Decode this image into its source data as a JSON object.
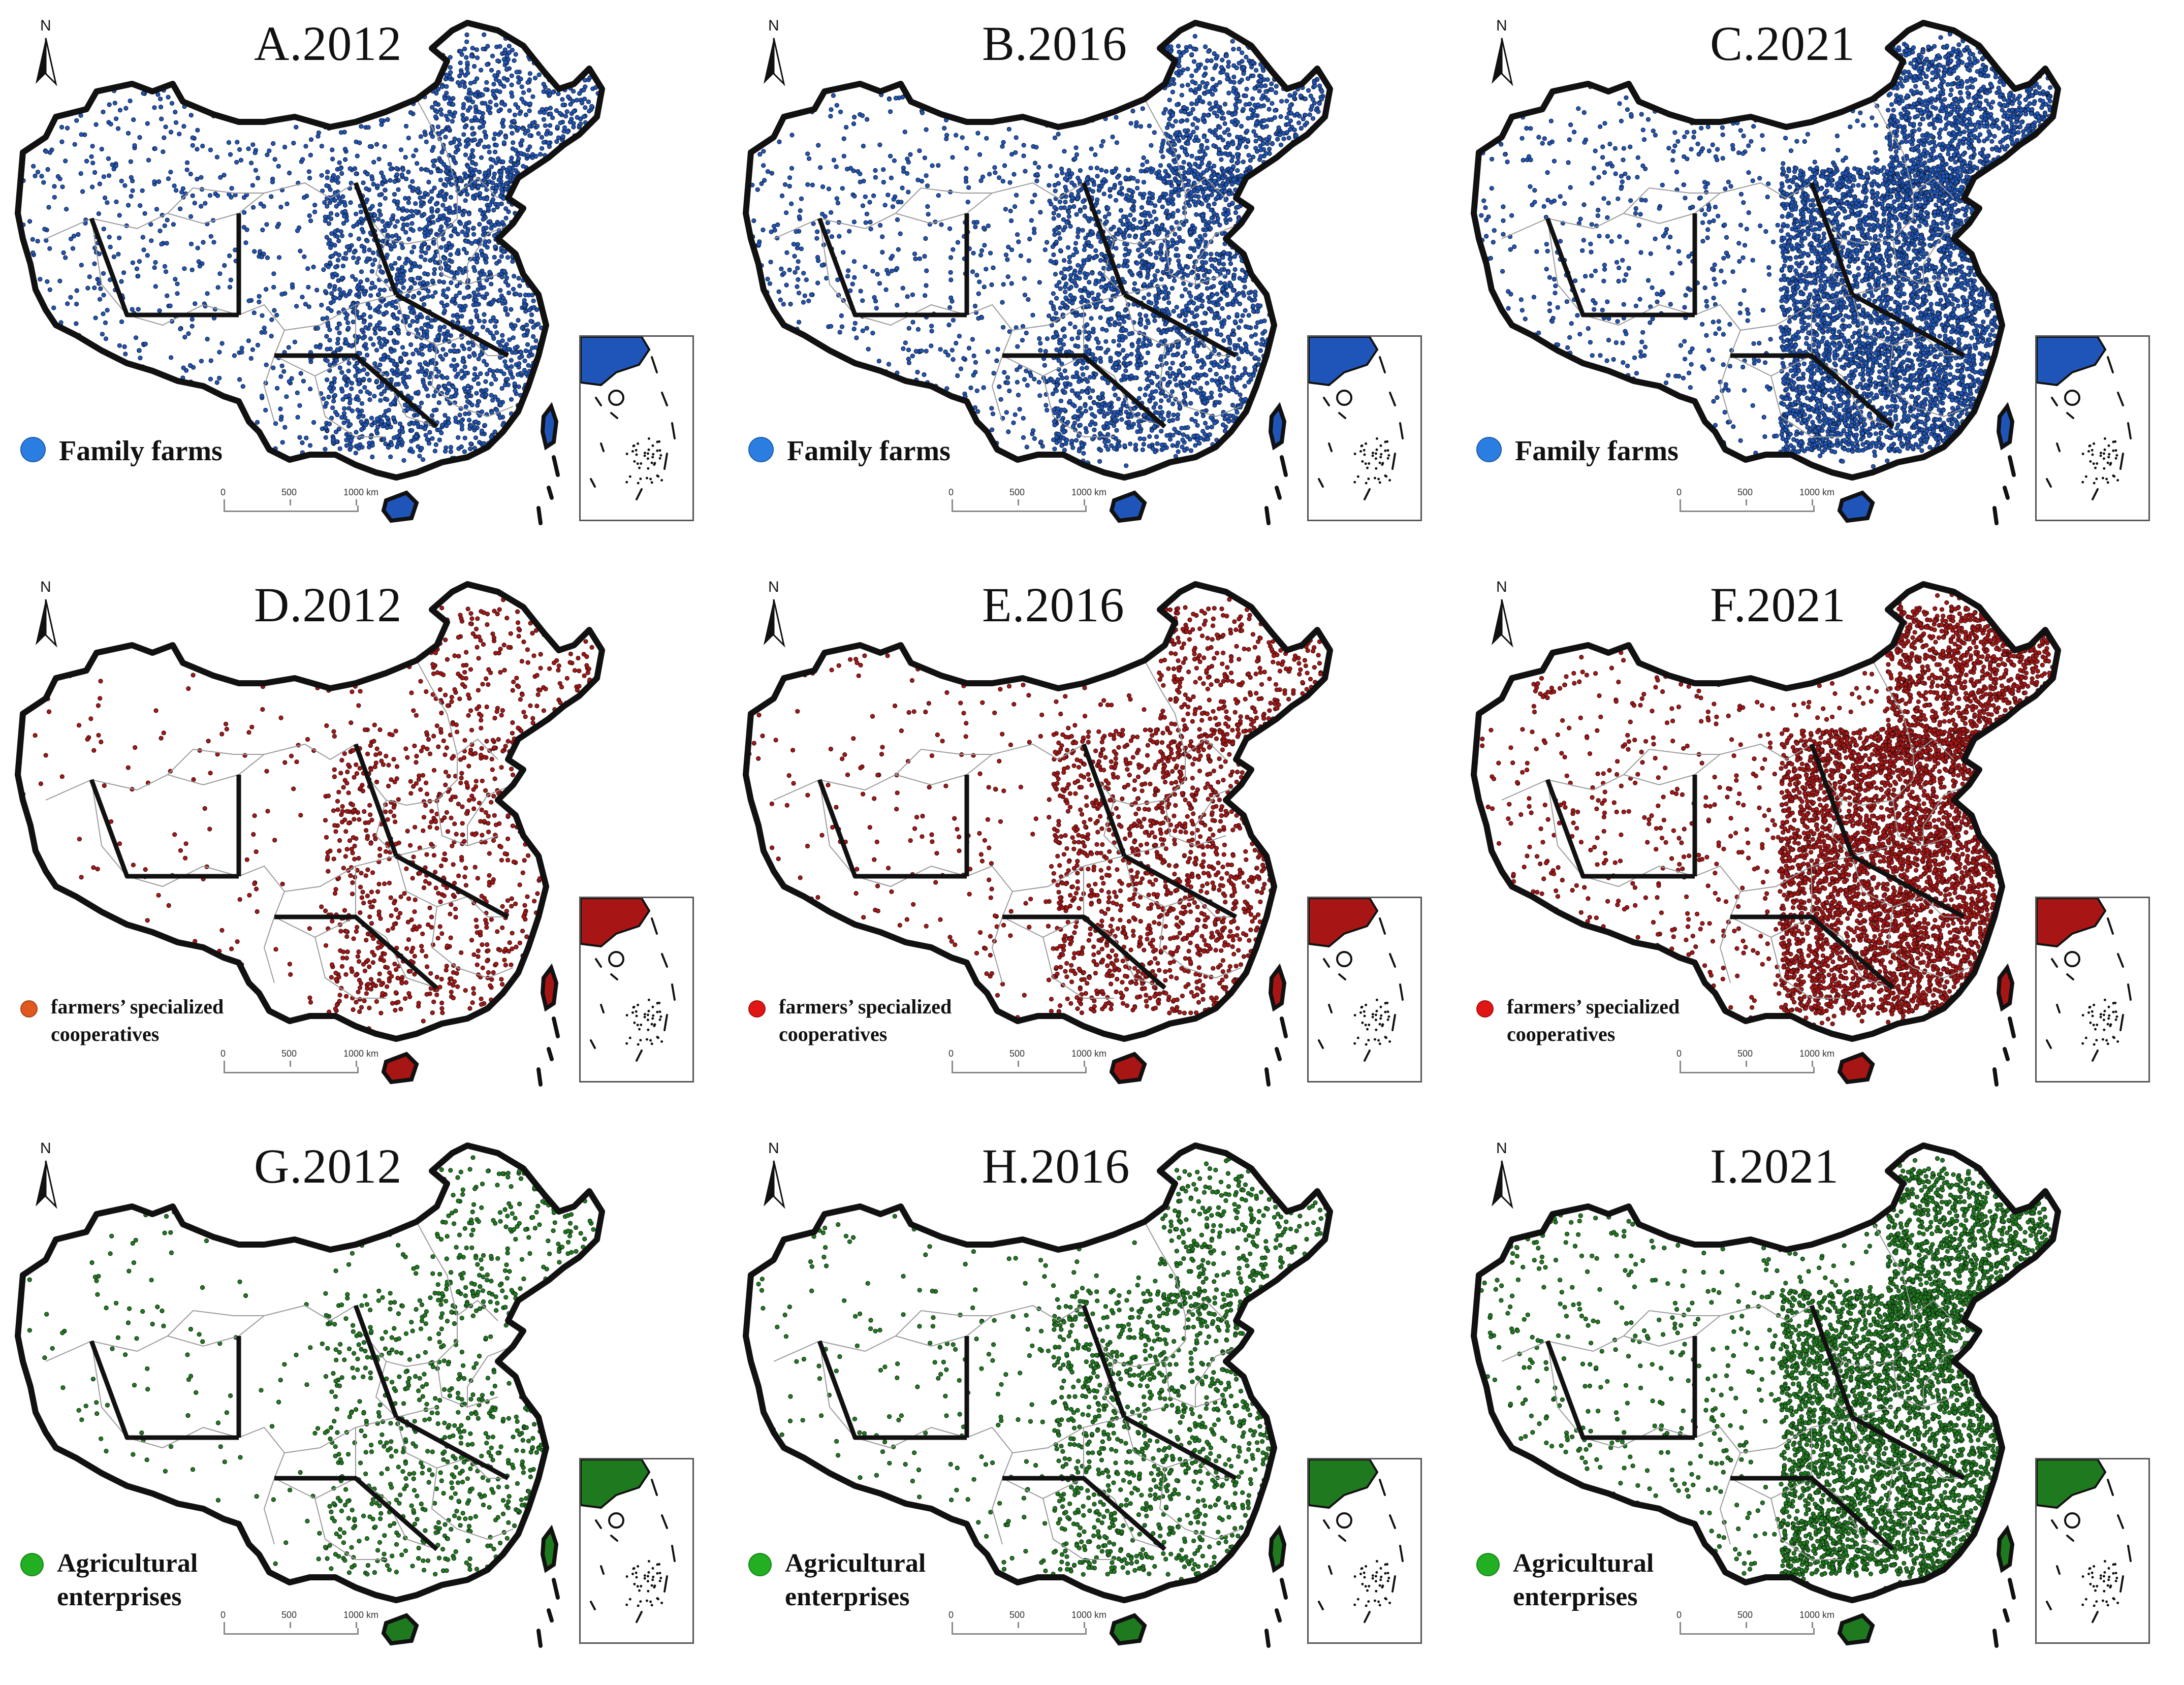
{
  "colors": {
    "family": "#1f55b8",
    "family_legend": "#2a7de1",
    "coop": "#a81515",
    "coop_legend_orange": "#e0581f",
    "coop_legend_red": "#e01515",
    "ent": "#1f7a1f",
    "ent_legend": "#22b022",
    "outline": "#111111",
    "inner": "#9a9a9a"
  },
  "north_label": "N",
  "scale_labels": [
    "0",
    "500",
    "1000 km"
  ],
  "panels": [
    {
      "title": "A.2012",
      "legend": [
        "Family farms"
      ],
      "legend_color": "#2a7de1",
      "dot_color": "#1f55b8",
      "density": 0.55,
      "east_focus": 0.6
    },
    {
      "title": "B.2016",
      "legend": [
        "Family farms"
      ],
      "legend_color": "#2a7de1",
      "dot_color": "#1f55b8",
      "density": 0.6,
      "east_focus": 0.65
    },
    {
      "title": "C.2021",
      "legend": [
        "Family farms"
      ],
      "legend_color": "#2a7de1",
      "dot_color": "#1f55b8",
      "density": 1.0,
      "east_focus": 0.8
    },
    {
      "title": "D.2012",
      "legend": [
        "farmers’ specialized",
        "cooperatives"
      ],
      "legend_color": "#e0581f",
      "dot_color": "#a81515",
      "density": 0.2,
      "east_focus": 0.75
    },
    {
      "title": "E.2016",
      "legend": [
        "farmers’ specialized",
        "cooperatives"
      ],
      "legend_color": "#e01515",
      "dot_color": "#a81515",
      "density": 0.35,
      "east_focus": 0.75
    },
    {
      "title": "F.2021",
      "legend": [
        "farmers’ specialized",
        "cooperatives"
      ],
      "legend_color": "#e01515",
      "dot_color": "#a81515",
      "density": 0.95,
      "east_focus": 0.8
    },
    {
      "title": "G.2012",
      "legend": [
        "Agricultural",
        "enterprises"
      ],
      "legend_color": "#22b022",
      "dot_color": "#1f7a1f",
      "density": 0.18,
      "east_focus": 0.75
    },
    {
      "title": "H.2016",
      "legend": [
        "Agricultural",
        "enterprises"
      ],
      "legend_color": "#22b022",
      "dot_color": "#1f7a1f",
      "density": 0.3,
      "east_focus": 0.72
    },
    {
      "title": "I.2021",
      "legend": [
        "Agricultural",
        "enterprises"
      ],
      "legend_color": "#22b022",
      "dot_color": "#1f7a1f",
      "density": 0.85,
      "east_focus": 0.8
    }
  ]
}
